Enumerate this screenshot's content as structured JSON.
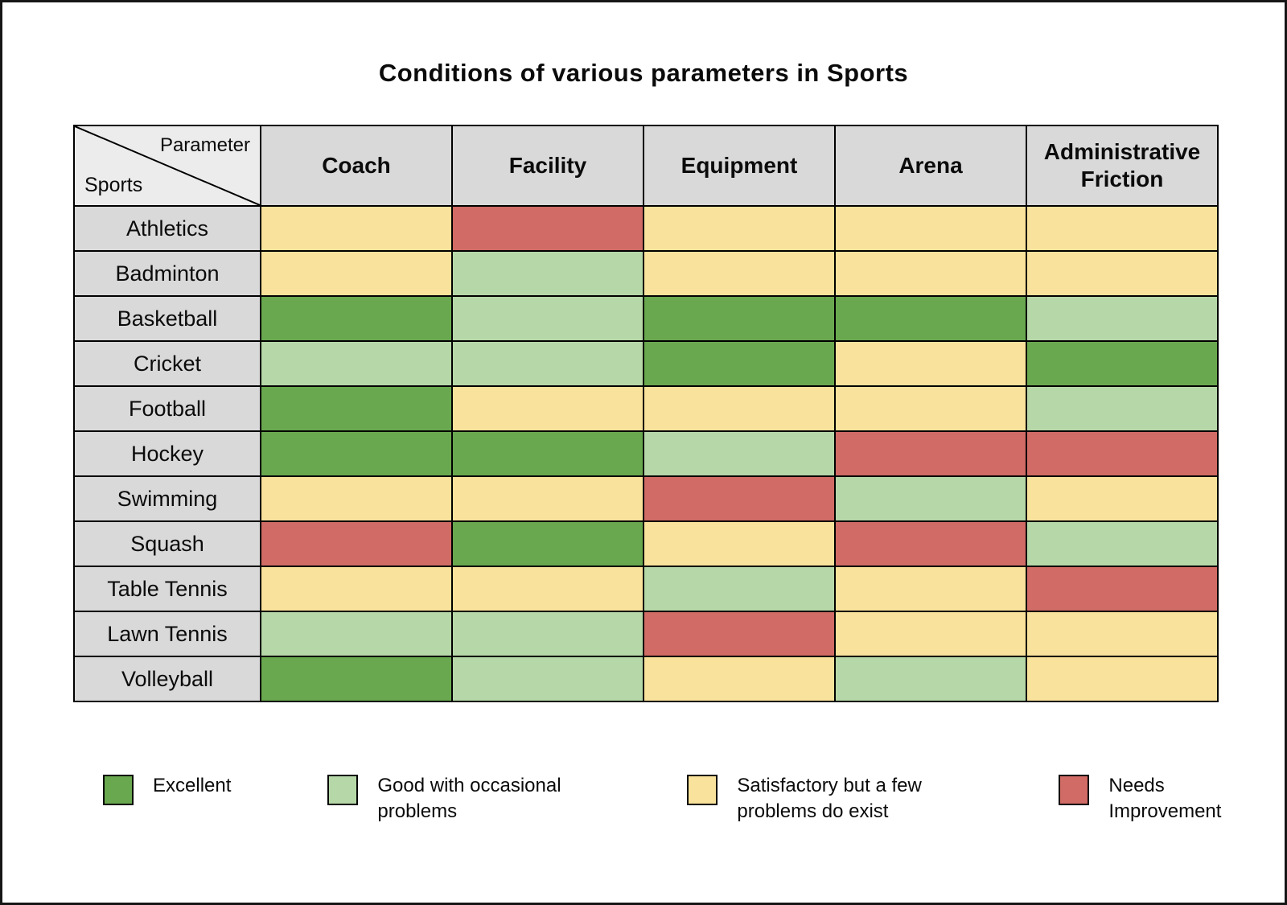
{
  "page_title": "Conditions of various parameters in Sports",
  "corner": {
    "top_label": "Parameter",
    "bottom_label": "Sports"
  },
  "colors": {
    "excellent": "#6aa84f",
    "good": "#b6d7a8",
    "satisfactory": "#f9e29b",
    "needs_improvement": "#d06b65",
    "header_bg": "#d9d9d9",
    "corner_bg": "#ececec",
    "border": "#000000"
  },
  "chart_data": {
    "type": "heatmap",
    "title": "Conditions of various parameters in Sports",
    "columns": [
      "Coach",
      "Facility",
      "Equipment",
      "Arena",
      "Administrative Friction"
    ],
    "rows": [
      "Athletics",
      "Badminton",
      "Basketball",
      "Cricket",
      "Football",
      "Hockey",
      "Swimming",
      "Squash",
      "Table Tennis",
      "Lawn Tennis",
      "Volleyball"
    ],
    "values": [
      [
        "satisfactory",
        "needs",
        "satisfactory",
        "satisfactory",
        "satisfactory"
      ],
      [
        "satisfactory",
        "good",
        "satisfactory",
        "satisfactory",
        "satisfactory"
      ],
      [
        "excellent",
        "good",
        "excellent",
        "excellent",
        "good"
      ],
      [
        "good",
        "good",
        "excellent",
        "satisfactory",
        "excellent"
      ],
      [
        "excellent",
        "satisfactory",
        "satisfactory",
        "satisfactory",
        "good"
      ],
      [
        "excellent",
        "excellent",
        "good",
        "needs",
        "needs"
      ],
      [
        "satisfactory",
        "satisfactory",
        "needs",
        "good",
        "satisfactory"
      ],
      [
        "needs",
        "excellent",
        "satisfactory",
        "needs",
        "good"
      ],
      [
        "satisfactory",
        "satisfactory",
        "good",
        "satisfactory",
        "needs"
      ],
      [
        "good",
        "good",
        "needs",
        "satisfactory",
        "satisfactory"
      ],
      [
        "excellent",
        "good",
        "satisfactory",
        "good",
        "satisfactory"
      ]
    ],
    "legend": [
      {
        "key": "excellent",
        "label": "Excellent"
      },
      {
        "key": "good",
        "label": "Good with occasional problems"
      },
      {
        "key": "satisfactory",
        "label": "Satisfactory but a few problems do exist"
      },
      {
        "key": "needs",
        "label": "Needs Improvement"
      }
    ],
    "value_scale": {
      "excellent": "Excellent",
      "good": "Good with occasional problems",
      "satisfactory": "Satisfactory but a few problems do exist",
      "needs": "Needs Improvement"
    }
  }
}
